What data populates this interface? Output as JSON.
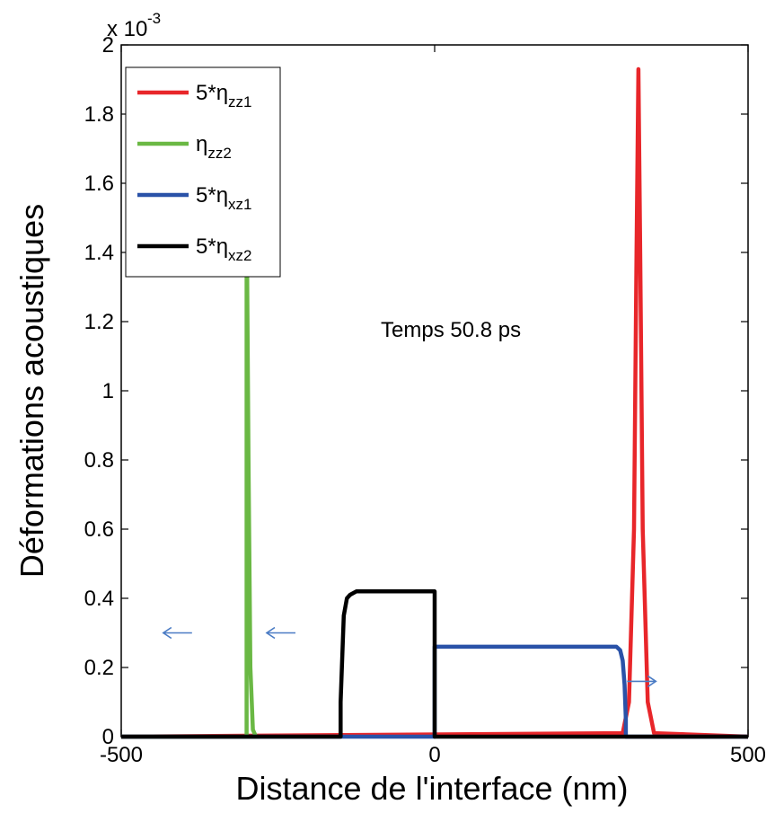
{
  "chart_data": {
    "type": "line",
    "title": "",
    "xlabel": "Distance de l'interface (nm)",
    "ylabel": "Déformations acoustiques",
    "xlim": [
      -500,
      500
    ],
    "ylim": [
      0,
      0.002
    ],
    "y_exponent_label": "x 10",
    "y_exponent_power": "-3",
    "y_scale_factor": 0.001,
    "xticks": [
      -500,
      0,
      500
    ],
    "xtick_labels": [
      "-500",
      "0",
      "500"
    ],
    "yticks": [
      0,
      0.0002,
      0.0004,
      0.0006,
      0.0008,
      0.001,
      0.0012,
      0.0014,
      0.0016,
      0.0018,
      0.002
    ],
    "ytick_labels": [
      "0",
      "0.2",
      "0.4",
      "0.6",
      "0.8",
      "1",
      "1.2",
      "1.4",
      "1.6",
      "1.8",
      "2"
    ],
    "grid": false,
    "legend_position": "top-left",
    "annotation": "Temps 50.8 ps",
    "series": [
      {
        "name": "5*η_zz1",
        "legend_main": "5*η",
        "legend_sub": "zz1",
        "color": "#e8262a",
        "x": [
          -500,
          300,
          310,
          318,
          322,
          325,
          328,
          332,
          340,
          350,
          500
        ],
        "y": [
          0,
          1e-05,
          0.0001,
          0.0006,
          0.0014,
          0.00193,
          0.0014,
          0.0006,
          0.0001,
          1e-05,
          0
        ]
      },
      {
        "name": "η_zz2",
        "legend_main": "η",
        "legend_sub": "zz2",
        "color": "#6ab844",
        "x": [
          -500,
          -300,
          -300,
          -297,
          -294,
          -290,
          -285,
          -280,
          -500
        ],
        "y": [
          0,
          0,
          0.00156,
          0.0008,
          0.0002,
          2e-05,
          0,
          0,
          0
        ]
      },
      {
        "name": "5*η_xz1",
        "legend_main": "5*η",
        "legend_sub": "xz1",
        "color": "#2a52a8",
        "x": [
          -500,
          0,
          0,
          290,
          296,
          300,
          303,
          305,
          305,
          500
        ],
        "y": [
          0,
          0,
          0.00026,
          0.00026,
          0.00025,
          0.00022,
          0.00015,
          5e-05,
          0,
          0
        ]
      },
      {
        "name": "5*η_xz2",
        "legend_main": "5*η",
        "legend_sub": "xz2",
        "color": "#000000",
        "x": [
          -500,
          -150,
          -150,
          -145,
          -140,
          -135,
          -125,
          0,
          0,
          500
        ],
        "y": [
          0,
          0,
          0.0001,
          0.00035,
          0.0004,
          0.00041,
          0.00042,
          0.00042,
          0,
          0
        ]
      }
    ],
    "arrows": [
      {
        "color": "#4a7bc4",
        "direction": "left",
        "x": -410,
        "y": 0.0003
      },
      {
        "color": "#4a7bc4",
        "direction": "left",
        "x": -245,
        "y": 0.0003
      },
      {
        "color": "#4a7bc4",
        "direction": "right",
        "x": 330,
        "y": 0.00016
      },
      {
        "color": "#4a7bc4",
        "direction": "right",
        "x": 740,
        "y": 0.00022
      }
    ]
  }
}
